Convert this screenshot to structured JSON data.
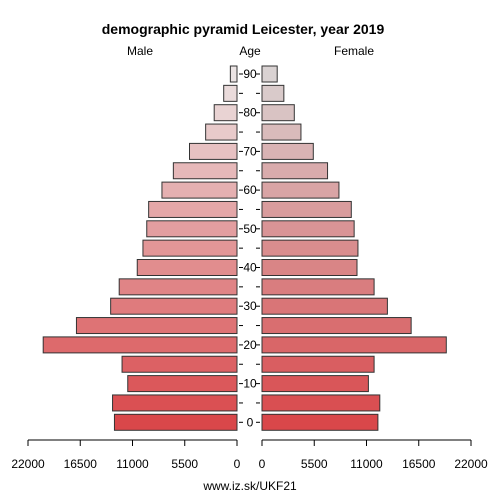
{
  "chart_data": {
    "type": "bar",
    "title": "demographic pyramid Leicester, year 2019",
    "left_label": "Male",
    "center_label": "Age",
    "right_label": "Female",
    "source": "www.iz.sk/UKF21",
    "age_groups": [
      "0-4",
      "5-9",
      "10-14",
      "15-19",
      "20-24",
      "25-29",
      "30-34",
      "35-39",
      "40-44",
      "45-49",
      "50-54",
      "55-59",
      "60-64",
      "65-69",
      "70-74",
      "75-79",
      "80-84",
      "85-89",
      "90+"
    ],
    "age_ticks": [
      0,
      10,
      20,
      30,
      40,
      50,
      60,
      70,
      80,
      90
    ],
    "x_ticks_left": [
      "22000",
      "16500",
      "11000",
      "5500",
      "0"
    ],
    "x_ticks_right": [
      "0",
      "5500",
      "11000",
      "16500",
      "22000"
    ],
    "xlim": [
      0,
      22000
    ],
    "series": [
      {
        "name": "Male",
        "values": [
          12900,
          13100,
          11500,
          12100,
          20400,
          16900,
          13300,
          12400,
          10500,
          9900,
          9500,
          9300,
          7900,
          6700,
          5000,
          3300,
          2400,
          1400,
          700
        ],
        "color_low": "#d9474a",
        "color_high": "#ebe4e4"
      },
      {
        "name": "Female",
        "values": [
          12200,
          12400,
          11200,
          11800,
          19400,
          15700,
          13200,
          11800,
          10000,
          10100,
          9700,
          9400,
          8100,
          6900,
          5400,
          4100,
          3400,
          2300,
          1600
        ],
        "color_low": "#d9474a",
        "color_high": "#d9d2d2"
      }
    ]
  }
}
